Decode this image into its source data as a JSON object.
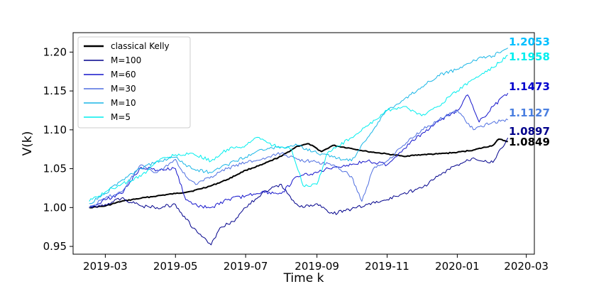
{
  "chart_data": {
    "type": "line",
    "title": "",
    "xlabel": "Time k",
    "ylabel": "V(k)",
    "xlim": [
      "2019-02-01",
      "2020-03-08"
    ],
    "ylim": [
      0.94,
      1.225
    ],
    "x_ticks": [
      "2019-03",
      "2019-05",
      "2019-07",
      "2019-09",
      "2019-11",
      "2020-01",
      "2020-03"
    ],
    "y_ticks": [
      "0.95",
      "1.00",
      "1.05",
      "1.10",
      "1.15",
      "1.20"
    ],
    "grid": false,
    "legend_position": "top-left",
    "series": [
      {
        "name": "classical Kelly",
        "color": "#000000",
        "width": 2.0,
        "end_label": "1.0849",
        "points": [
          [
            "2019-02-15",
            1.0
          ],
          [
            "2019-03-01",
            1.002
          ],
          [
            "2019-03-15",
            1.008
          ],
          [
            "2019-04-01",
            1.012
          ],
          [
            "2019-04-15",
            1.015
          ],
          [
            "2019-05-01",
            1.018
          ],
          [
            "2019-05-15",
            1.021
          ],
          [
            "2019-06-01",
            1.028
          ],
          [
            "2019-06-15",
            1.036
          ],
          [
            "2019-07-01",
            1.048
          ],
          [
            "2019-07-15",
            1.055
          ],
          [
            "2019-08-01",
            1.066
          ],
          [
            "2019-08-15",
            1.079
          ],
          [
            "2019-08-25",
            1.082
          ],
          [
            "2019-09-05",
            1.072
          ],
          [
            "2019-09-15",
            1.08
          ],
          [
            "2019-10-01",
            1.076
          ],
          [
            "2019-10-15",
            1.072
          ],
          [
            "2019-11-01",
            1.069
          ],
          [
            "2019-11-15",
            1.066
          ],
          [
            "2019-12-01",
            1.068
          ],
          [
            "2019-12-15",
            1.069
          ],
          [
            "2020-01-01",
            1.071
          ],
          [
            "2020-01-15",
            1.074
          ],
          [
            "2020-02-01",
            1.08
          ],
          [
            "2020-02-06",
            1.088
          ],
          [
            "2020-02-14",
            1.085
          ]
        ]
      },
      {
        "name": "M=100",
        "color": "#00008b",
        "width": 1.0,
        "end_label": "1.0897",
        "points": [
          [
            "2019-02-15",
            1.0
          ],
          [
            "2019-03-01",
            1.004
          ],
          [
            "2019-03-15",
            1.012
          ],
          [
            "2019-04-01",
            1.002
          ],
          [
            "2019-04-15",
            1.0
          ],
          [
            "2019-05-01",
            1.004
          ],
          [
            "2019-05-10",
            0.985
          ],
          [
            "2019-05-20",
            0.968
          ],
          [
            "2019-06-01",
            0.952
          ],
          [
            "2019-06-10",
            0.975
          ],
          [
            "2019-06-20",
            0.982
          ],
          [
            "2019-07-01",
            1.0
          ],
          [
            "2019-07-15",
            1.018
          ],
          [
            "2019-08-01",
            1.03
          ],
          [
            "2019-08-10",
            1.01
          ],
          [
            "2019-08-20",
            1.0
          ],
          [
            "2019-09-01",
            1.005
          ],
          [
            "2019-09-15",
            0.992
          ],
          [
            "2019-10-01",
            0.998
          ],
          [
            "2019-10-15",
            1.004
          ],
          [
            "2019-11-01",
            1.01
          ],
          [
            "2019-11-15",
            1.018
          ],
          [
            "2019-12-01",
            1.025
          ],
          [
            "2019-12-15",
            1.04
          ],
          [
            "2020-01-01",
            1.055
          ],
          [
            "2020-01-15",
            1.064
          ],
          [
            "2020-02-01",
            1.058
          ],
          [
            "2020-02-14",
            1.0897
          ]
        ]
      },
      {
        "name": "M=60",
        "color": "#1515cc",
        "width": 1.0,
        "end_label": "1.1473",
        "points": [
          [
            "2019-02-15",
            1.0
          ],
          [
            "2019-03-01",
            1.01
          ],
          [
            "2019-03-15",
            1.018
          ],
          [
            "2019-04-01",
            1.052
          ],
          [
            "2019-04-15",
            1.048
          ],
          [
            "2019-05-01",
            1.05
          ],
          [
            "2019-05-10",
            1.01
          ],
          [
            "2019-05-20",
            1.002
          ],
          [
            "2019-06-01",
            1.0
          ],
          [
            "2019-06-15",
            1.01
          ],
          [
            "2019-07-01",
            1.015
          ],
          [
            "2019-07-15",
            1.02
          ],
          [
            "2019-08-01",
            1.018
          ],
          [
            "2019-08-15",
            1.04
          ],
          [
            "2019-09-01",
            1.045
          ],
          [
            "2019-09-15",
            1.052
          ],
          [
            "2019-10-01",
            1.055
          ],
          [
            "2019-10-15",
            1.06
          ],
          [
            "2019-11-01",
            1.055
          ],
          [
            "2019-11-15",
            1.075
          ],
          [
            "2019-12-01",
            1.095
          ],
          [
            "2019-12-15",
            1.11
          ],
          [
            "2020-01-01",
            1.125
          ],
          [
            "2020-01-10",
            1.145
          ],
          [
            "2020-01-20",
            1.11
          ],
          [
            "2020-02-01",
            1.13
          ],
          [
            "2020-02-14",
            1.1473
          ]
        ]
      },
      {
        "name": "M=30",
        "color": "#4f6fe0",
        "width": 1.0,
        "end_label": "1.1127",
        "points": [
          [
            "2019-02-15",
            1.0
          ],
          [
            "2019-03-01",
            1.012
          ],
          [
            "2019-03-15",
            1.02
          ],
          [
            "2019-04-01",
            1.055
          ],
          [
            "2019-04-15",
            1.045
          ],
          [
            "2019-05-01",
            1.062
          ],
          [
            "2019-05-10",
            1.04
          ],
          [
            "2019-05-20",
            1.03
          ],
          [
            "2019-06-01",
            1.04
          ],
          [
            "2019-06-15",
            1.05
          ],
          [
            "2019-07-01",
            1.058
          ],
          [
            "2019-07-15",
            1.062
          ],
          [
            "2019-08-01",
            1.07
          ],
          [
            "2019-08-15",
            1.062
          ],
          [
            "2019-09-01",
            1.058
          ],
          [
            "2019-09-15",
            1.055
          ],
          [
            "2019-10-01",
            1.04
          ],
          [
            "2019-10-10",
            1.008
          ],
          [
            "2019-10-20",
            1.05
          ],
          [
            "2019-11-01",
            1.06
          ],
          [
            "2019-11-15",
            1.08
          ],
          [
            "2019-12-01",
            1.1
          ],
          [
            "2019-12-15",
            1.112
          ],
          [
            "2020-01-01",
            1.125
          ],
          [
            "2020-01-15",
            1.1
          ],
          [
            "2020-02-01",
            1.11
          ],
          [
            "2020-02-14",
            1.1127
          ]
        ]
      },
      {
        "name": "M=10",
        "color": "#1ab6e6",
        "width": 1.0,
        "end_label": "1.2053",
        "points": [
          [
            "2019-02-15",
            1.005
          ],
          [
            "2019-03-01",
            1.018
          ],
          [
            "2019-03-15",
            1.035
          ],
          [
            "2019-04-01",
            1.05
          ],
          [
            "2019-04-15",
            1.06
          ],
          [
            "2019-05-01",
            1.065
          ],
          [
            "2019-05-15",
            1.05
          ],
          [
            "2019-06-01",
            1.045
          ],
          [
            "2019-06-15",
            1.055
          ],
          [
            "2019-07-01",
            1.065
          ],
          [
            "2019-07-15",
            1.075
          ],
          [
            "2019-08-01",
            1.078
          ],
          [
            "2019-08-15",
            1.08
          ],
          [
            "2019-09-01",
            1.07
          ],
          [
            "2019-09-15",
            1.065
          ],
          [
            "2019-10-01",
            1.06
          ],
          [
            "2019-10-15",
            1.09
          ],
          [
            "2019-11-01",
            1.125
          ],
          [
            "2019-11-15",
            1.138
          ],
          [
            "2019-12-01",
            1.155
          ],
          [
            "2019-12-15",
            1.17
          ],
          [
            "2020-01-01",
            1.178
          ],
          [
            "2020-01-15",
            1.19
          ],
          [
            "2020-02-01",
            1.195
          ],
          [
            "2020-02-14",
            1.2053
          ]
        ]
      },
      {
        "name": "M=5",
        "color": "#00eeee",
        "width": 1.0,
        "end_label": "1.1958",
        "points": [
          [
            "2019-02-15",
            1.008
          ],
          [
            "2019-03-01",
            1.02
          ],
          [
            "2019-03-15",
            1.03
          ],
          [
            "2019-04-01",
            1.04
          ],
          [
            "2019-04-15",
            1.06
          ],
          [
            "2019-05-01",
            1.068
          ],
          [
            "2019-05-15",
            1.07
          ],
          [
            "2019-06-01",
            1.06
          ],
          [
            "2019-06-15",
            1.075
          ],
          [
            "2019-07-01",
            1.08
          ],
          [
            "2019-07-10",
            1.09
          ],
          [
            "2019-07-25",
            1.08
          ],
          [
            "2019-08-10",
            1.075
          ],
          [
            "2019-08-20",
            1.028
          ],
          [
            "2019-09-01",
            1.03
          ],
          [
            "2019-09-10",
            1.07
          ],
          [
            "2019-10-01",
            1.09
          ],
          [
            "2019-10-15",
            1.105
          ],
          [
            "2019-11-01",
            1.125
          ],
          [
            "2019-11-15",
            1.13
          ],
          [
            "2019-12-01",
            1.118
          ],
          [
            "2019-12-15",
            1.13
          ],
          [
            "2020-01-01",
            1.15
          ],
          [
            "2020-01-15",
            1.165
          ],
          [
            "2020-02-01",
            1.18
          ],
          [
            "2020-02-14",
            1.1958
          ]
        ]
      }
    ],
    "end_label_colors": {
      "1.2053": "#00bfff",
      "1.1958": "#00eeee",
      "1.1473": "#0000cd",
      "1.1127": "#4a7fe0",
      "1.0897": "#00008b",
      "1.0849": "#000000"
    }
  }
}
